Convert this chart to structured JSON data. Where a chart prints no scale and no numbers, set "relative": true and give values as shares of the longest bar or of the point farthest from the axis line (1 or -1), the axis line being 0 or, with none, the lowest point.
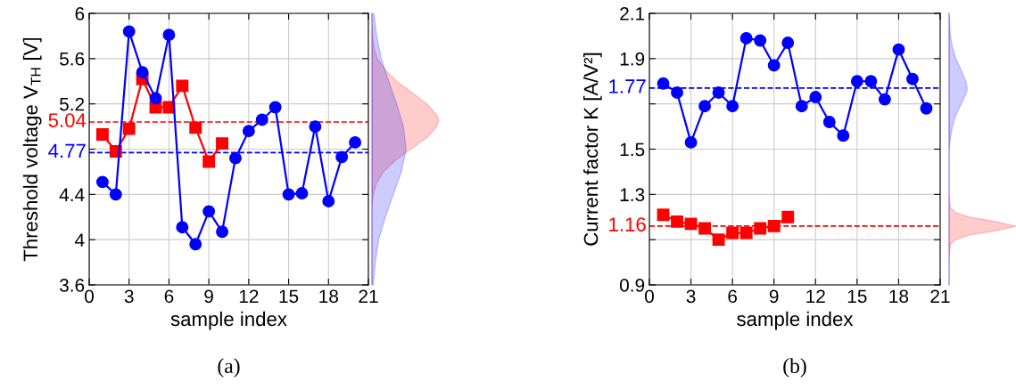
{
  "chart_data": [
    {
      "type": "line",
      "xlabel": "sample index",
      "ylabel": "Threshold voltage V$_{TH}$ [V]",
      "annotations": [
        "(a)"
      ],
      "x": [
        1,
        2,
        3,
        4,
        5,
        6,
        7,
        8,
        9,
        10,
        11,
        12,
        13,
        14,
        15,
        16,
        17,
        18,
        19,
        20
      ],
      "xlim": [
        0,
        21
      ],
      "xticks": [
        0,
        3,
        6,
        9,
        12,
        15,
        18,
        21
      ],
      "ylim": [
        3.6,
        6
      ],
      "yticks": [
        3.6,
        4,
        4.4,
        {
          "value": 4.8,
          "label": null
        },
        5.2,
        5.6,
        6
      ],
      "grid": true,
      "line_style": "solid",
      "series": [
        {
          "color": "#ff0000",
          "marker": "square",
          "x": [
            1,
            2,
            3,
            4,
            5,
            6,
            7,
            8,
            9,
            10
          ],
          "values": [
            4.93,
            4.78,
            4.98,
            5.42,
            5.17,
            5.17,
            5.36,
            4.99,
            4.69,
            4.85
          ]
        },
        {
          "color": "#0000ff",
          "marker": "circle",
          "values": [
            4.51,
            4.4,
            5.84,
            5.48,
            5.25,
            5.81,
            4.11,
            3.96,
            4.25,
            4.07,
            4.72,
            4.96,
            5.06,
            5.17,
            4.4,
            4.41,
            5.0,
            4.34,
            4.73,
            4.86
          ]
        }
      ],
      "ref_lines": [
        {
          "axis": "y",
          "value": 5.04,
          "label": "5.04",
          "color": "#ff0000",
          "line_style": "dashed"
        },
        {
          "axis": "y",
          "value": 4.77,
          "label": "4.77",
          "color": "#0000ff",
          "line_style": "dashed"
        }
      ]
    },
    {
      "type": "area",
      "orientation": "horizontal",
      "relative": true,
      "ylim": [
        3.6,
        6
      ],
      "tick_labels": false,
      "series": [
        {
          "color": "#ff0000",
          "x": [
            4.3,
            4.4,
            4.5,
            4.6,
            4.7,
            4.8,
            4.9,
            5.0,
            5.05,
            5.1,
            5.2,
            5.3,
            5.4,
            5.5,
            5.6,
            5.7,
            5.8,
            5.9
          ],
          "values": [
            0,
            0.02,
            0.07,
            0.17,
            0.35,
            0.58,
            0.82,
            0.97,
            1,
            0.97,
            0.82,
            0.6,
            0.37,
            0.2,
            0.08,
            0.03,
            0.01,
            0
          ]
        },
        {
          "color": "#0000ff",
          "x": [
            3.6,
            3.8,
            4.0,
            4.2,
            4.4,
            4.6,
            4.8,
            5.0,
            5.2,
            5.4,
            5.6,
            5.8,
            6.0
          ],
          "values": [
            0.02,
            0.05,
            0.1,
            0.2,
            0.32,
            0.44,
            0.51,
            0.47,
            0.37,
            0.25,
            0.14,
            0.07,
            0.03
          ]
        }
      ]
    },
    {
      "type": "line",
      "xlabel": "sample index",
      "ylabel": "Current factor K [A/V²]",
      "annotations": [
        "(b)"
      ],
      "x": [
        1,
        2,
        3,
        4,
        5,
        6,
        7,
        8,
        9,
        10,
        11,
        12,
        13,
        14,
        15,
        16,
        17,
        18,
        19,
        20
      ],
      "xlim": [
        0,
        21
      ],
      "xticks": [
        0,
        3,
        6,
        9,
        12,
        15,
        18,
        21
      ],
      "ylim": [
        0.9,
        2.1
      ],
      "yticks": [
        0.9,
        {
          "value": 1.1,
          "label": null
        },
        1.3,
        1.5,
        {
          "value": 1.7,
          "label": null
        },
        1.9,
        2.1
      ],
      "grid": true,
      "line_style": "solid",
      "series": [
        {
          "color": "#ff0000",
          "marker": "square",
          "x": [
            1,
            2,
            3,
            4,
            5,
            6,
            7,
            8,
            9,
            10
          ],
          "values": [
            1.21,
            1.18,
            1.17,
            1.15,
            1.1,
            1.13,
            1.13,
            1.15,
            1.16,
            1.2
          ]
        },
        {
          "color": "#0000ff",
          "marker": "circle",
          "values": [
            1.79,
            1.75,
            1.53,
            1.69,
            1.75,
            1.69,
            1.99,
            1.98,
            1.87,
            1.97,
            1.69,
            1.73,
            1.62,
            1.56,
            1.8,
            1.8,
            1.72,
            1.94,
            1.81,
            1.68
          ]
        }
      ],
      "ref_lines": [
        {
          "axis": "y",
          "value": 1.77,
          "label": "1.77",
          "color": "#0000ff",
          "line_style": "dashed"
        },
        {
          "axis": "y",
          "value": 1.16,
          "label": "1.16",
          "color": "#ff0000",
          "line_style": "dashed"
        }
      ]
    },
    {
      "type": "area",
      "orientation": "horizontal",
      "relative": true,
      "ylim": [
        0.9,
        2.1
      ],
      "tick_labels": false,
      "series": [
        {
          "color": "#0000ff",
          "x": [
            1.5,
            1.55,
            1.6,
            1.65,
            1.7,
            1.75,
            1.77,
            1.8,
            1.85,
            1.9,
            1.95,
            2.0,
            2.1
          ],
          "values": [
            0,
            0.02,
            0.05,
            0.1,
            0.18,
            0.26,
            0.27,
            0.25,
            0.18,
            0.1,
            0.05,
            0.02,
            0
          ]
        },
        {
          "color": "#ff0000",
          "x": [
            1.0,
            1.08,
            1.1,
            1.12,
            1.14,
            1.16,
            1.18,
            1.2,
            1.22,
            1.24,
            1.3
          ],
          "values": [
            0,
            0.02,
            0.1,
            0.3,
            0.7,
            1,
            0.7,
            0.3,
            0.1,
            0.02,
            0
          ]
        }
      ]
    }
  ]
}
